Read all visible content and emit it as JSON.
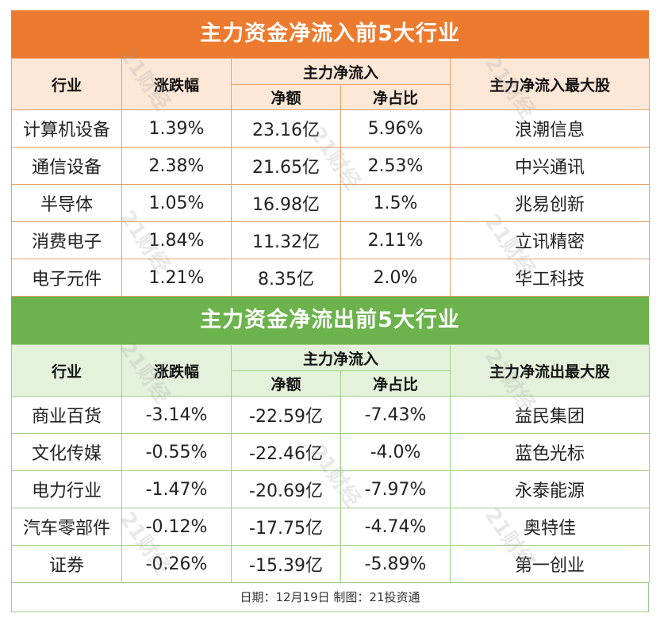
{
  "watermark": "21财经",
  "inflow": {
    "title": "主力资金净流入前5大行业",
    "headers": {
      "industry": "行业",
      "change": "涨跌幅",
      "group": "主力净流入",
      "net": "净额",
      "ratio": "净占比",
      "top_stock": "主力净流入最大股"
    },
    "rows": [
      {
        "industry": "计算机设备",
        "change": "1.39%",
        "net": "23.16亿",
        "ratio": "5.96%",
        "stock": "浪潮信息"
      },
      {
        "industry": "通信设备",
        "change": "2.38%",
        "net": "21.65亿",
        "ratio": "2.53%",
        "stock": "中兴通讯"
      },
      {
        "industry": "半导体",
        "change": "1.05%",
        "net": "16.98亿",
        "ratio": "1.5%",
        "stock": "兆易创新"
      },
      {
        "industry": "消费电子",
        "change": "1.84%",
        "net": "11.32亿",
        "ratio": "2.11%",
        "stock": "立讯精密"
      },
      {
        "industry": "电子元件",
        "change": "1.21%",
        "net": "8.35亿",
        "ratio": "2.0%",
        "stock": "华工科技"
      }
    ]
  },
  "outflow": {
    "title": "主力资金净流出前5大行业",
    "headers": {
      "industry": "行业",
      "change": "涨跌幅",
      "group": "主力净流入",
      "net": "净额",
      "ratio": "净占比",
      "top_stock": "主力净流出最大股"
    },
    "rows": [
      {
        "industry": "商业百货",
        "change": "-3.14%",
        "net": "-22.59亿",
        "ratio": "-7.43%",
        "stock": "益民集团"
      },
      {
        "industry": "文化传媒",
        "change": "-0.55%",
        "net": "-22.46亿",
        "ratio": "-4.0%",
        "stock": "蓝色光标"
      },
      {
        "industry": "电力行业",
        "change": "-1.47%",
        "net": "-20.69亿",
        "ratio": "-7.97%",
        "stock": "永泰能源"
      },
      {
        "industry": "汽车零部件",
        "change": "-0.12%",
        "net": "-17.75亿",
        "ratio": "-4.74%",
        "stock": "奥特佳"
      },
      {
        "industry": "证券",
        "change": "-0.26%",
        "net": "-15.39亿",
        "ratio": "-5.89%",
        "stock": "第一创业"
      }
    ]
  },
  "footer": "日期：12月19日 制图：21投资通",
  "colors": {
    "inflow_banner": "#ec7b30",
    "outflow_banner": "#6cb34d",
    "inflow_header_bg": "#fde7d6",
    "outflow_header_bg": "#e4f2dc"
  }
}
